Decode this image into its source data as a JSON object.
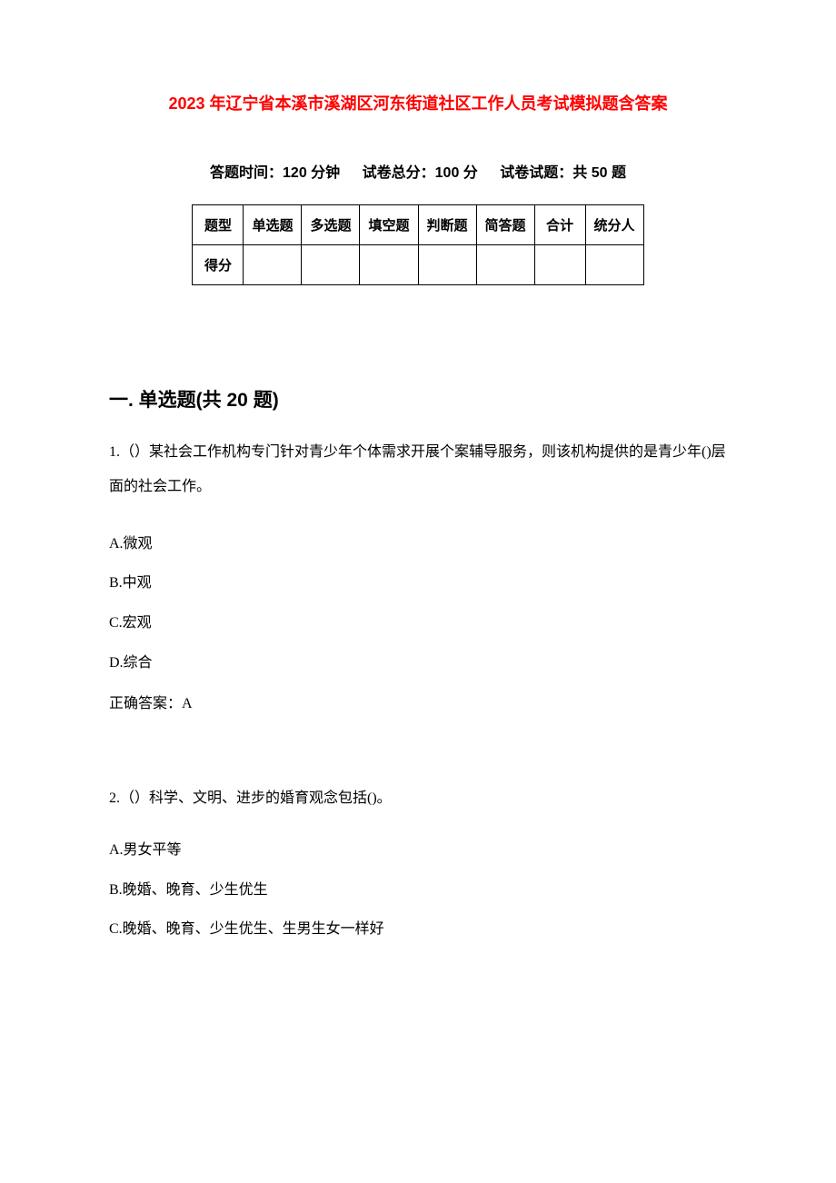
{
  "title": "2023 年辽宁省本溪市溪湖区河东街道社区工作人员考试模拟题含答案",
  "meta": {
    "time_label": "答题时间：120 分钟",
    "total_score_label": "试卷总分：100 分",
    "question_count_label": "试卷试题：共 50 题"
  },
  "score_table": {
    "header_row": [
      "题型",
      "单选题",
      "多选题",
      "填空题",
      "判断题",
      "简答题",
      "合计",
      "统分人"
    ],
    "score_row_label": "得分"
  },
  "section_header": "一. 单选题(共 20 题)",
  "question1": {
    "text": "1.（）某社会工作机构专门针对青少年个体需求开展个案辅导服务，则该机构提供的是青少年()层面的社会工作。",
    "options": {
      "a": "A.微观",
      "b": "B.中观",
      "c": "C.宏观",
      "d": "D.综合"
    },
    "answer": "正确答案：A"
  },
  "question2": {
    "text": "2.（）科学、文明、进步的婚育观念包括()。",
    "options": {
      "a": "A.男女平等",
      "b": "B.晚婚、晚育、少生优生",
      "c": "C.晚婚、晚育、少生优生、生男生女一样好"
    }
  },
  "colors": {
    "title_color": "#ff0000",
    "text_color": "#000000",
    "background_color": "#ffffff",
    "table_border_color": "#000000"
  },
  "typography": {
    "title_fontsize": 18,
    "meta_fontsize": 16,
    "section_header_fontsize": 21,
    "body_fontsize": 16,
    "table_fontsize": 15
  }
}
